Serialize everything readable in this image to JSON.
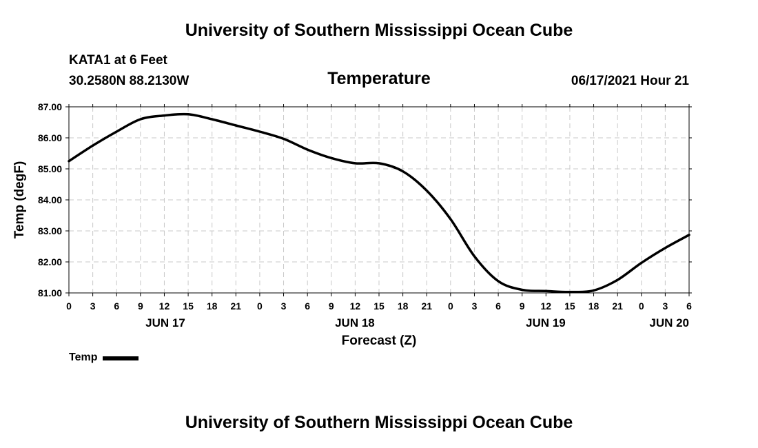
{
  "header": {
    "main_title": "University of Southern Mississippi Ocean Cube",
    "station": "KATA1 at 6 Feet",
    "coordinates": "30.2580N  88.2130W",
    "timestamp": "06/17/2021 Hour 21"
  },
  "footer": {
    "title": "University of Southern Mississippi Ocean Cube"
  },
  "chart_data": {
    "type": "line",
    "title": "Temperature",
    "xlabel": "Forecast (Z)",
    "ylabel": "Temp (degF)",
    "ylim": [
      81.0,
      87.0
    ],
    "xlim": [
      0,
      78
    ],
    "grid": true,
    "y_ticks": [
      81.0,
      82.0,
      83.0,
      84.0,
      85.0,
      86.0,
      87.0
    ],
    "y_tick_labels": [
      "81.00",
      "82.00",
      "83.00",
      "84.00",
      "85.00",
      "86.00",
      "87.00"
    ],
    "x_ticks": [
      0,
      3,
      6,
      9,
      12,
      15,
      18,
      21,
      24,
      27,
      30,
      33,
      36,
      39,
      42,
      45,
      48,
      51,
      54,
      57,
      60,
      63,
      66,
      69,
      72,
      75,
      78
    ],
    "x_tick_labels": [
      "0",
      "3",
      "6",
      "9",
      "12",
      "15",
      "18",
      "21",
      "0",
      "3",
      "6",
      "9",
      "12",
      "15",
      "18",
      "21",
      "0",
      "3",
      "6",
      "9",
      "12",
      "15",
      "18",
      "21",
      "0",
      "3",
      "6"
    ],
    "date_labels": [
      {
        "x": 0,
        "label": "JUN 17"
      },
      {
        "x": 24,
        "label": "JUN 18"
      },
      {
        "x": 48,
        "label": "JUN 19"
      },
      {
        "x": 72,
        "label": "JUN 20"
      }
    ],
    "legend": [
      {
        "name": "Temp",
        "color": "#000000"
      }
    ],
    "series": [
      {
        "name": "Temp",
        "x": [
          0,
          3,
          6,
          9,
          12,
          15,
          18,
          21,
          24,
          27,
          30,
          33,
          36,
          39,
          42,
          45,
          48,
          51,
          54,
          57,
          60,
          63,
          66,
          69,
          72,
          75,
          78
        ],
        "values": [
          85.25,
          85.75,
          86.2,
          86.6,
          86.72,
          86.76,
          86.6,
          86.4,
          86.2,
          85.97,
          85.62,
          85.35,
          85.18,
          85.18,
          84.92,
          84.3,
          83.38,
          82.18,
          81.38,
          81.1,
          81.06,
          81.03,
          81.08,
          81.42,
          81.97,
          82.45,
          82.87
        ]
      }
    ]
  }
}
